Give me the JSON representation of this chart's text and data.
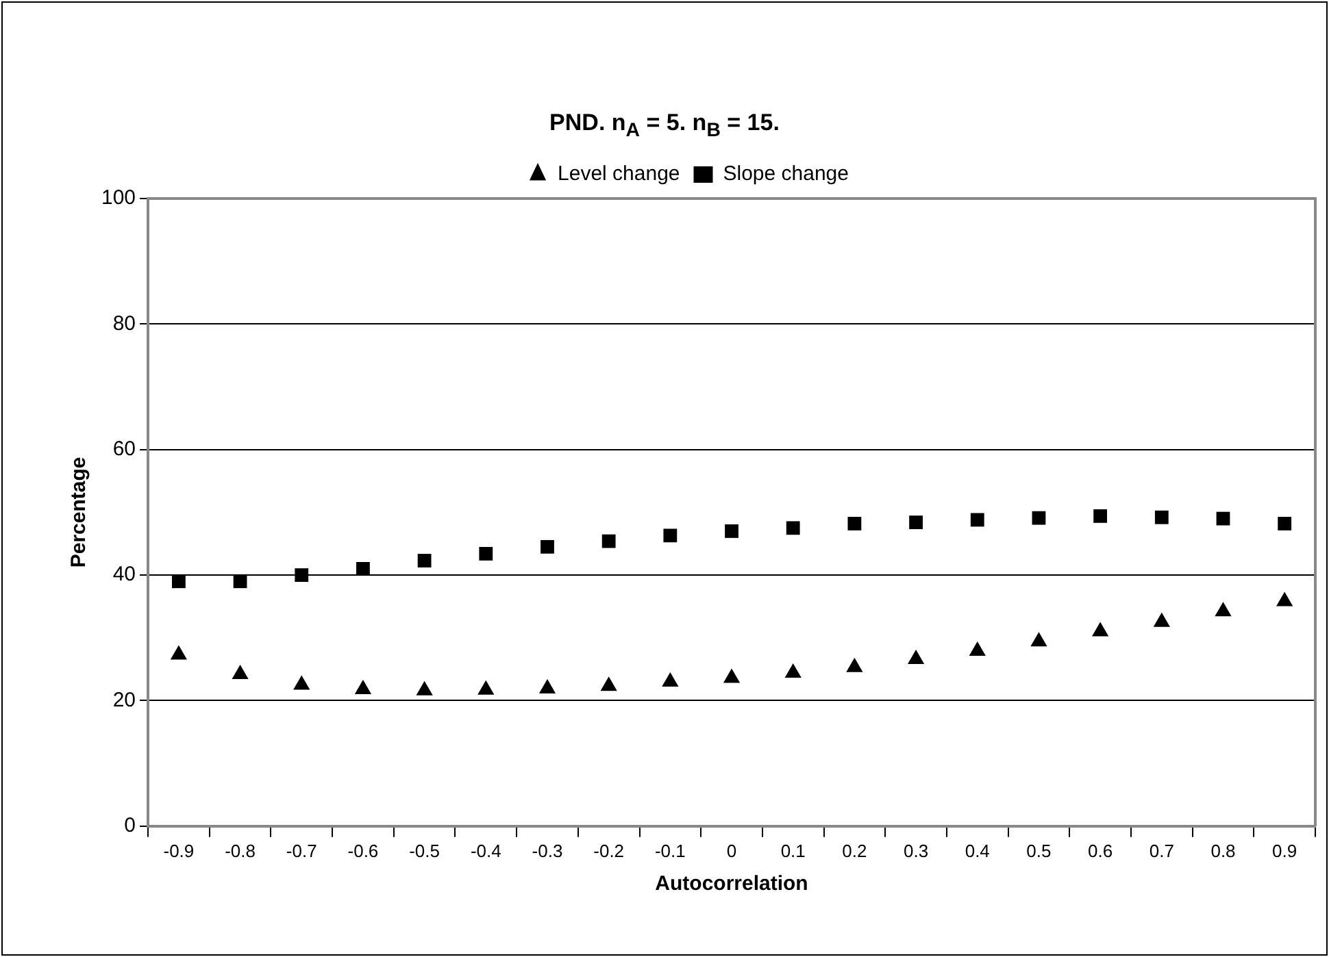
{
  "chart_data": {
    "type": "scatter",
    "title": "PND. n$_{A}$ = 5. n$_{B}$ = 15.",
    "xlabel": "Autocorrelation",
    "ylabel": "Percentage",
    "categories": [
      "-0.9",
      "-0.8",
      "-0.7",
      "-0.6",
      "-0.5",
      "-0.4",
      "-0.3",
      "-0.2",
      "-0.1",
      "0",
      "0.1",
      "0.2",
      "0.3",
      "0.4",
      "0.5",
      "0.6",
      "0.7",
      "0.8",
      "0.9"
    ],
    "series": [
      {
        "name": "Level change",
        "color": "#000000",
        "marker": "triangle",
        "values": [
          27.3,
          24.2,
          22.5,
          21.8,
          21.6,
          21.7,
          21.9,
          22.3,
          23,
          23.6,
          24.4,
          25.3,
          26.6,
          27.9,
          29.4,
          31,
          32.5,
          34.2,
          35.8
        ]
      },
      {
        "name": "Slope change",
        "color": "#000000",
        "marker": "square",
        "values": [
          39,
          39,
          40,
          41,
          42.3,
          43.4,
          44.5,
          45.4,
          46.3,
          47,
          47.5,
          48.2,
          48.4,
          48.8,
          49.1,
          49.4,
          49.2,
          49,
          48.2
        ]
      }
    ],
    "ylim": [
      0,
      100
    ],
    "yticks": [
      0,
      20,
      40,
      60,
      80,
      100
    ],
    "grid": "y",
    "legend": "top"
  }
}
